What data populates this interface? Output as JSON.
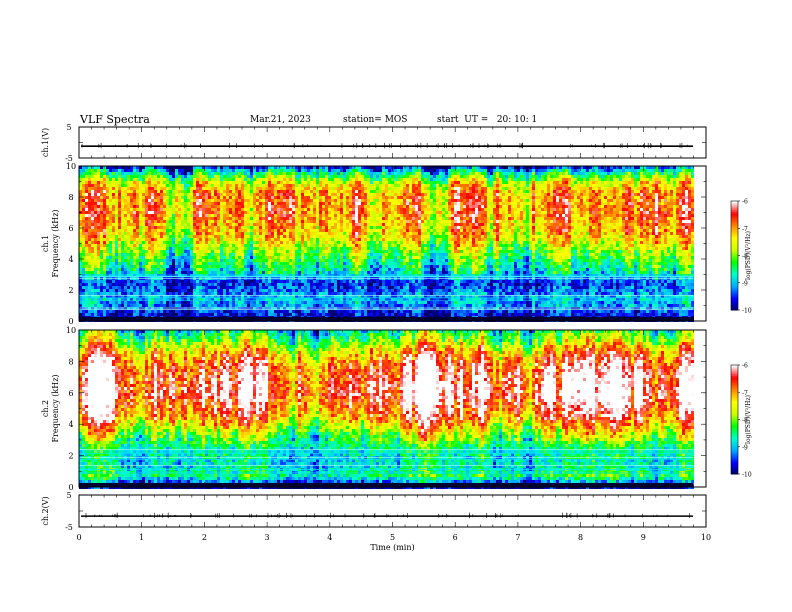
{
  "header": {
    "title": "VLF Spectra",
    "date": "Mar.21, 2023",
    "station": "station= MOS",
    "start": "start  UT =   20: 10: 1"
  },
  "chart_data": [
    {
      "type": "line",
      "panel": "ch1-waveform",
      "ylabel": "ch.1(V)",
      "yticks": [
        "5",
        "-5"
      ],
      "ylim": [
        -5,
        5
      ],
      "xlim": [
        0,
        10
      ],
      "series": [
        {
          "values": "near-zero flat trace ~ -1 V"
        }
      ],
      "level": -1.2
    },
    {
      "type": "heatmap",
      "panel": "ch1-spectrogram",
      "ylabel": "ch.1",
      "ylabel2": "Frequency  (kHz)",
      "yticks": [
        "0",
        "2",
        "4",
        "6",
        "8",
        "10"
      ],
      "ylim": [
        0,
        10
      ],
      "xlim": [
        0,
        9.8
      ],
      "band_profile": [
        {
          "f": 0.3,
          "c": -9.8
        },
        {
          "f": 1.0,
          "c": -9.2
        },
        {
          "f": 1.5,
          "c": -9.0
        },
        {
          "f": 2.0,
          "c": -9.3
        },
        {
          "f": 2.5,
          "c": -9.5
        },
        {
          "f": 3.0,
          "c": -8.9
        },
        {
          "f": 3.5,
          "c": -8.6
        },
        {
          "f": 4.5,
          "c": -8.0
        },
        {
          "f": 5.5,
          "c": -7.3
        },
        {
          "f": 7.0,
          "c": -6.9
        },
        {
          "f": 8.3,
          "c": -7.0
        },
        {
          "f": 9.0,
          "c": -7.6
        },
        {
          "f": 9.5,
          "c": -8.5
        },
        {
          "f": 10.0,
          "c": -9.7
        }
      ],
      "colorbar": {
        "label": "log(PSD)(V²/Hz)",
        "ticks": [
          "-6",
          "-7",
          "-8",
          "-9",
          "-10"
        ],
        "range": [
          -10,
          -6
        ]
      }
    },
    {
      "type": "heatmap",
      "panel": "ch2-spectrogram",
      "ylabel": "ch.2",
      "ylabel2": "Frequency  (kHz)",
      "yticks": [
        "0",
        "2",
        "4",
        "6",
        "8",
        "10"
      ],
      "ylim": [
        0,
        10
      ],
      "xlim": [
        0,
        9.8
      ],
      "band_profile": [
        {
          "f": 0.2,
          "c": -9.9
        },
        {
          "f": 0.8,
          "c": -8.4
        },
        {
          "f": 1.5,
          "c": -8.8
        },
        {
          "f": 2.5,
          "c": -8.6
        },
        {
          "f": 3.5,
          "c": -7.8
        },
        {
          "f": 4.5,
          "c": -6.8
        },
        {
          "f": 6.0,
          "c": -6.1
        },
        {
          "f": 7.5,
          "c": -6.4
        },
        {
          "f": 8.5,
          "c": -7.0
        },
        {
          "f": 9.3,
          "c": -7.9
        },
        {
          "f": 10.0,
          "c": -8.6
        }
      ],
      "colorbar": {
        "label": "log(PSD)(V²/Hz)",
        "ticks": [
          "-6",
          "-7",
          "-8",
          "-9",
          "-10"
        ],
        "range": [
          -10,
          -6
        ]
      }
    },
    {
      "type": "line",
      "panel": "ch2-waveform",
      "ylabel": "ch.2(V)",
      "yticks": [
        "5",
        "-5"
      ],
      "ylim": [
        -5,
        5
      ],
      "xlim": [
        0,
        10
      ],
      "series": [
        {
          "values": "near-zero flat trace ~ -1 V"
        }
      ],
      "level": -1.6
    }
  ],
  "xaxis": {
    "label": "Time  (min)",
    "ticks": [
      "0",
      "1",
      "2",
      "3",
      "4",
      "5",
      "6",
      "7",
      "8",
      "9",
      "10"
    ],
    "xlim": [
      0,
      10
    ]
  },
  "colors": {
    "colormap": [
      "#000066",
      "#0000ff",
      "#00aaff",
      "#00ffcc",
      "#00ff00",
      "#ccff00",
      "#ffff00",
      "#ff8800",
      "#ff0000",
      "#ffffff"
    ]
  }
}
